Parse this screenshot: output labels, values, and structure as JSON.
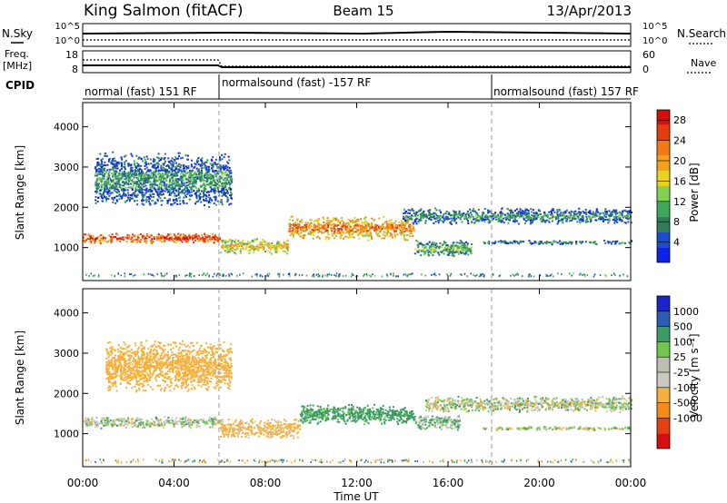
{
  "header": {
    "site": "King Salmon (fitACF)",
    "beam": "Beam 15",
    "date": "13/Apr/2013"
  },
  "strips": {
    "nsky_label": "N.Sky",
    "nsearch_label": "N.Search",
    "log_ticks_left": [
      "10^5",
      "10^0"
    ],
    "log_ticks_right": [
      "10^5",
      "10^0"
    ],
    "freq_label_1": "Freq.",
    "freq_label_2": "[MHz]",
    "freq_ticks": [
      "18",
      "8"
    ],
    "nave_label": "Nave",
    "nave_ticks": [
      "60",
      "0"
    ],
    "cpid_label": "CPID",
    "cpid_segments": [
      "normal (fast) 151 RF",
      "normalsound (fast) -157 RF",
      "normalsound (fast) 157 RF"
    ]
  },
  "colors": {
    "power_scale": [
      "#0b22e8",
      "#1d4cc8",
      "#2f7e5a",
      "#3ea85a",
      "#7fd24f",
      "#e8d11f",
      "#f4a21a",
      "#f27a14",
      "#e43b10",
      "#d60e0e"
    ],
    "velocity_scale": [
      "#d60e0e",
      "#e54012",
      "#f48b18",
      "#f6b03c",
      "#c9c9c0",
      "#bdbdb4",
      "#6fc84e",
      "#3a9a63",
      "#2d5bb5",
      "#1a24c8"
    ]
  },
  "chart_data": [
    {
      "type": "heatmap",
      "title": "Power",
      "xlabel": "",
      "ylabel": "Slant Range [km]",
      "x_ticks": [
        "00:00",
        "04:00",
        "08:00",
        "12:00",
        "16:00",
        "20:00",
        "00:00"
      ],
      "x_range_hours": [
        0,
        24
      ],
      "ylim": [
        180,
        4600
      ],
      "y_ticks": [
        1000,
        2000,
        3000,
        4000
      ],
      "colorbar_label": "Power [dB]",
      "colorbar_ticks": [
        "4",
        "8",
        "12",
        "16",
        "20",
        "24",
        "28"
      ],
      "colorbar_range": [
        0,
        30
      ],
      "echo_bands": [
        {
          "x_start": 0.0,
          "x_end": 6.0,
          "y_center": 1250,
          "half_width": 130,
          "value": 22
        },
        {
          "x_start": 6.0,
          "x_end": 9.0,
          "y_center": 1050,
          "half_width": 200,
          "value": 14
        },
        {
          "x_start": 9.0,
          "x_end": 14.5,
          "y_center": 1500,
          "half_width": 300,
          "value": 18
        },
        {
          "x_start": 14.5,
          "x_end": 17.0,
          "y_center": 1000,
          "half_width": 220,
          "value": 8
        },
        {
          "x_start": 0.5,
          "x_end": 6.5,
          "y_center": 2700,
          "half_width": 700,
          "value": 5
        },
        {
          "x_start": 14.0,
          "x_end": 24.0,
          "y_center": 1800,
          "half_width": 200,
          "value": 5
        },
        {
          "x_start": 17.5,
          "x_end": 24.0,
          "y_center": 1150,
          "half_width": 50,
          "value": 5
        }
      ]
    },
    {
      "type": "heatmap",
      "title": "Velocity",
      "xlabel": "Time UT",
      "ylabel": "Slant Range [km]",
      "x_ticks": [
        "00:00",
        "04:00",
        "08:00",
        "12:00",
        "16:00",
        "20:00",
        "00:00"
      ],
      "x_range_hours": [
        0,
        24
      ],
      "ylim": [
        180,
        4600
      ],
      "y_ticks": [
        1000,
        2000,
        3000,
        4000
      ],
      "colorbar_label": "Velocity [m s⁻¹]",
      "colorbar_ticks": [
        "1000",
        "500",
        "100",
        "25",
        "-25",
        "-100",
        "-500",
        "-1000"
      ],
      "echo_bands": [
        {
          "x_start": 0.0,
          "x_end": 6.0,
          "y_center": 1300,
          "half_width": 150,
          "value": 0
        },
        {
          "x_start": 6.0,
          "x_end": 9.5,
          "y_center": 1150,
          "half_width": 250,
          "value": -200
        },
        {
          "x_start": 9.5,
          "x_end": 14.5,
          "y_center": 1500,
          "half_width": 260,
          "value": 200
        },
        {
          "x_start": 14.5,
          "x_end": 16.5,
          "y_center": 1300,
          "half_width": 200,
          "value": 60
        },
        {
          "x_start": 1.0,
          "x_end": 6.5,
          "y_center": 2700,
          "half_width": 650,
          "value": -300
        },
        {
          "x_start": 15.0,
          "x_end": 24.0,
          "y_center": 1750,
          "half_width": 200,
          "value": 0
        },
        {
          "x_start": 17.5,
          "x_end": 24.0,
          "y_center": 1150,
          "half_width": 50,
          "value": 0
        }
      ]
    }
  ]
}
